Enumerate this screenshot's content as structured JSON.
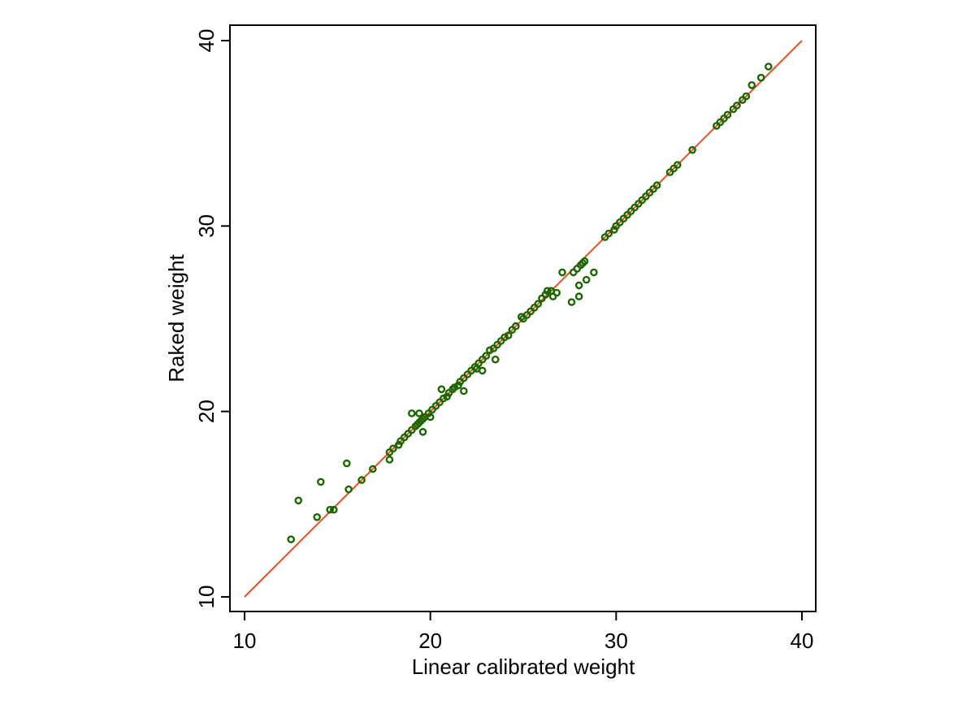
{
  "colors": {
    "background": "#ffffff",
    "axis": "#000000",
    "marker": "#1a6600",
    "reference_line": "#e8501e"
  },
  "chart_data": {
    "type": "scatter",
    "title": "",
    "xlabel": "Linear calibrated weight",
    "ylabel": "Raked weight",
    "xlim": [
      10,
      40
    ],
    "ylim": [
      10,
      40
    ],
    "xticks": [
      10,
      20,
      30,
      40
    ],
    "yticks": [
      10,
      20,
      30,
      40
    ],
    "grid": false,
    "legend": "none",
    "marker_style": "hollow circle",
    "reference_line": {
      "from": [
        10,
        10
      ],
      "to": [
        40,
        40
      ]
    },
    "series": [
      {
        "points": [
          [
            12.5,
            13.1
          ],
          [
            12.9,
            15.2
          ],
          [
            13.9,
            14.3
          ],
          [
            14.1,
            16.2
          ],
          [
            14.6,
            14.7
          ],
          [
            14.8,
            14.7
          ],
          [
            15.5,
            17.2
          ],
          [
            15.6,
            15.8
          ],
          [
            16.3,
            16.3
          ],
          [
            16.9,
            16.9
          ],
          [
            17.8,
            17.4
          ],
          [
            17.8,
            17.8
          ],
          [
            18.0,
            18.0
          ],
          [
            18.3,
            18.2
          ],
          [
            18.4,
            18.4
          ],
          [
            18.6,
            18.6
          ],
          [
            18.8,
            18.8
          ],
          [
            19.0,
            19.9
          ],
          [
            19.0,
            19.0
          ],
          [
            19.2,
            19.2
          ],
          [
            19.3,
            19.3
          ],
          [
            19.4,
            19.9
          ],
          [
            19.4,
            19.4
          ],
          [
            19.5,
            19.5
          ],
          [
            19.6,
            18.9
          ],
          [
            19.6,
            19.6
          ],
          [
            19.7,
            19.7
          ],
          [
            19.9,
            19.9
          ],
          [
            20.0,
            19.7
          ],
          [
            20.1,
            20.1
          ],
          [
            20.3,
            20.3
          ],
          [
            20.5,
            20.5
          ],
          [
            20.6,
            21.2
          ],
          [
            20.7,
            20.7
          ],
          [
            20.9,
            20.8
          ],
          [
            21.0,
            21.0
          ],
          [
            21.2,
            21.2
          ],
          [
            21.3,
            21.3
          ],
          [
            21.5,
            21.4
          ],
          [
            21.6,
            21.6
          ],
          [
            21.8,
            21.1
          ],
          [
            21.8,
            21.8
          ],
          [
            22.0,
            22.0
          ],
          [
            22.2,
            22.2
          ],
          [
            22.4,
            22.4
          ],
          [
            22.5,
            22.3
          ],
          [
            22.6,
            22.6
          ],
          [
            22.8,
            22.2
          ],
          [
            22.8,
            22.8
          ],
          [
            23.0,
            23.0
          ],
          [
            23.2,
            23.3
          ],
          [
            23.4,
            23.4
          ],
          [
            23.5,
            22.8
          ],
          [
            23.6,
            23.6
          ],
          [
            23.8,
            23.8
          ],
          [
            24.0,
            24.0
          ],
          [
            24.2,
            24.1
          ],
          [
            24.4,
            24.4
          ],
          [
            24.6,
            24.6
          ],
          [
            24.9,
            25.1
          ],
          [
            25.0,
            25.0
          ],
          [
            25.2,
            25.2
          ],
          [
            25.4,
            25.4
          ],
          [
            25.6,
            25.6
          ],
          [
            25.8,
            25.8
          ],
          [
            26.0,
            26.1
          ],
          [
            26.2,
            26.3
          ],
          [
            26.3,
            26.5
          ],
          [
            26.5,
            26.5
          ],
          [
            26.6,
            26.2
          ],
          [
            26.8,
            26.4
          ],
          [
            27.1,
            27.5
          ],
          [
            27.6,
            25.9
          ],
          [
            27.7,
            27.5
          ],
          [
            27.9,
            27.7
          ],
          [
            28.0,
            26.8
          ],
          [
            28.0,
            26.2
          ],
          [
            28.1,
            27.9
          ],
          [
            28.2,
            28.0
          ],
          [
            28.3,
            28.1
          ],
          [
            28.4,
            27.1
          ],
          [
            28.8,
            27.5
          ],
          [
            29.4,
            29.4
          ],
          [
            29.6,
            29.6
          ],
          [
            29.9,
            29.8
          ],
          [
            30.0,
            30.0
          ],
          [
            30.2,
            30.2
          ],
          [
            30.4,
            30.4
          ],
          [
            30.6,
            30.6
          ],
          [
            30.8,
            30.8
          ],
          [
            31.0,
            31.0
          ],
          [
            31.2,
            31.2
          ],
          [
            31.4,
            31.4
          ],
          [
            31.6,
            31.6
          ],
          [
            31.8,
            31.8
          ],
          [
            32.0,
            32.0
          ],
          [
            32.2,
            32.2
          ],
          [
            32.9,
            32.9
          ],
          [
            33.1,
            33.1
          ],
          [
            33.3,
            33.3
          ],
          [
            34.1,
            34.1
          ],
          [
            35.4,
            35.4
          ],
          [
            35.6,
            35.6
          ],
          [
            35.8,
            35.8
          ],
          [
            36.0,
            36.0
          ],
          [
            36.3,
            36.3
          ],
          [
            36.5,
            36.5
          ],
          [
            36.8,
            36.8
          ],
          [
            37.0,
            37.0
          ],
          [
            37.3,
            37.6
          ],
          [
            37.8,
            38.0
          ],
          [
            38.2,
            38.6
          ]
        ]
      }
    ]
  }
}
